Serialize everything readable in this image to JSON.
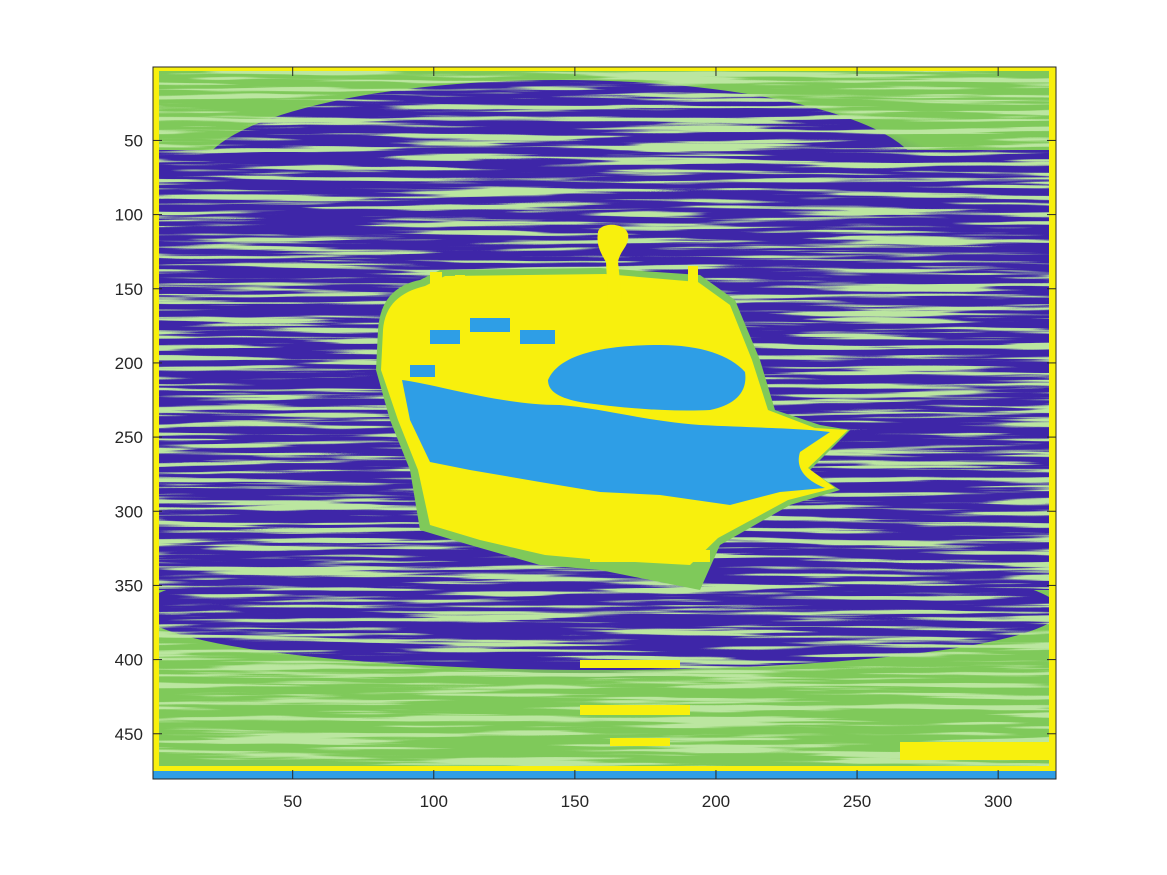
{
  "chart_data": {
    "type": "heatmap",
    "title": "",
    "xlabel": "",
    "ylabel": "",
    "xlim": [
      0.5,
      320.5
    ],
    "ylim": [
      0.5,
      480.5
    ],
    "y_reversed": true,
    "x_ticks": [
      50,
      100,
      150,
      200,
      250,
      300
    ],
    "x_tick_labels": [
      "50",
      "100",
      "150",
      "200",
      "250",
      "300"
    ],
    "y_ticks": [
      50,
      100,
      150,
      200,
      250,
      300,
      350,
      400,
      450
    ],
    "y_tick_labels": [
      "50",
      "100",
      "150",
      "200",
      "250",
      "300",
      "350",
      "400",
      "450"
    ],
    "colormap": [
      "#3e26a8",
      "#2e9ee6",
      "#7fc95a",
      "#f8f00d"
    ],
    "class_labels": [
      "water",
      "boat hull",
      "reflection / background",
      "boat superstructure"
    ],
    "grid": false,
    "legend": "none",
    "regions": [
      {
        "class": 2,
        "label": "background",
        "x": [
          1,
          320
        ],
        "y": [
          1,
          480
        ]
      },
      {
        "class": 0,
        "label": "water",
        "x": [
          2,
          320
        ],
        "y": [
          30,
          400
        ]
      },
      {
        "class": 2,
        "label": "superstructure base",
        "x": [
          80,
          215
        ],
        "y": [
          140,
          330
        ]
      },
      {
        "class": 3,
        "label": "superstructure",
        "x": [
          80,
          245
        ],
        "y": [
          105,
          320
        ]
      },
      {
        "class": 1,
        "label": "hull",
        "x": [
          90,
          242
        ],
        "y": [
          190,
          300
        ]
      }
    ]
  }
}
